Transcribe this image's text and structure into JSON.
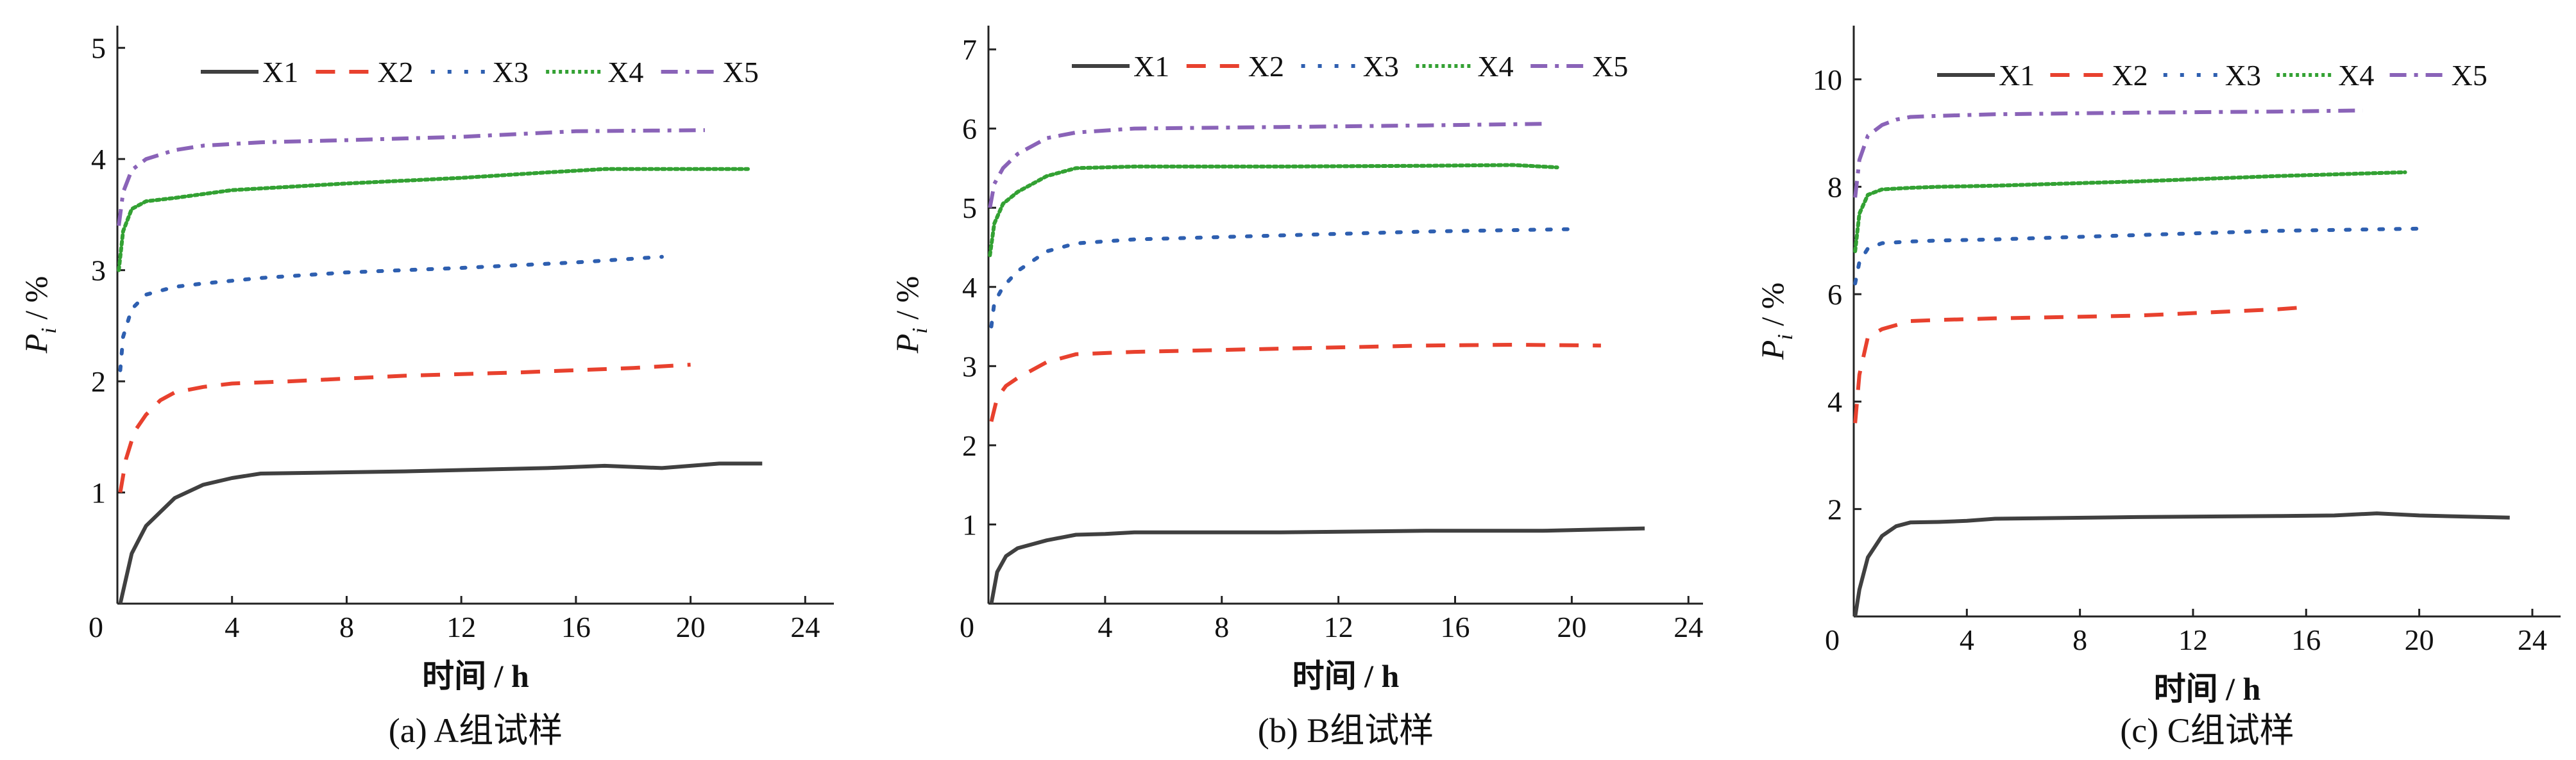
{
  "colors": {
    "X1": "#404040",
    "X2": "#e8412e",
    "X3": "#2e5fb0",
    "X4": "#33a133",
    "X5": "#8a63b8",
    "axis": "#222222"
  },
  "chart_data": [
    {
      "type": "line",
      "caption": "(a) A组试样",
      "xlabel": "时间 / h",
      "ylabel_main": "P",
      "ylabel_sub": "i",
      "ylabel_unit": " / %",
      "xlim": [
        0,
        25
      ],
      "ylim": [
        0,
        5.2
      ],
      "xticks": [
        0,
        4,
        8,
        12,
        16,
        20,
        24
      ],
      "yticks": [
        1,
        2,
        3,
        4,
        5
      ],
      "legend_position": "top",
      "series": [
        {
          "name": "X1",
          "style": "solid",
          "x": [
            0.1,
            0.5,
            0.8,
            1,
            2,
            3,
            4,
            5,
            10,
            15,
            17,
            19,
            21,
            22.5
          ],
          "y": [
            0,
            0.45,
            0.6,
            0.7,
            0.95,
            1.07,
            1.13,
            1.17,
            1.19,
            1.22,
            1.24,
            1.22,
            1.26,
            1.26
          ]
        },
        {
          "name": "X2",
          "style": "dashed",
          "x": [
            0.1,
            0.3,
            0.6,
            1,
            1.5,
            2,
            3,
            4,
            6,
            10,
            14,
            18,
            20
          ],
          "y": [
            1.0,
            1.3,
            1.55,
            1.7,
            1.83,
            1.9,
            1.95,
            1.98,
            2.0,
            2.05,
            2.08,
            2.12,
            2.15
          ]
        },
        {
          "name": "X3",
          "style": "dotted",
          "x": [
            0.1,
            0.2,
            0.5,
            1,
            2,
            3,
            5,
            8,
            12,
            16,
            19
          ],
          "y": [
            2.1,
            2.4,
            2.65,
            2.78,
            2.85,
            2.88,
            2.93,
            2.98,
            3.02,
            3.07,
            3.12
          ]
        },
        {
          "name": "X4",
          "style": "dense-dotted",
          "x": [
            0.05,
            0.2,
            0.5,
            1,
            2,
            4,
            8,
            12,
            15,
            17,
            20,
            22
          ],
          "y": [
            3.0,
            3.35,
            3.55,
            3.62,
            3.65,
            3.72,
            3.78,
            3.83,
            3.88,
            3.91,
            3.91,
            3.91
          ]
        },
        {
          "name": "X5",
          "style": "dash-dot",
          "x": [
            0.05,
            0.2,
            0.5,
            1,
            2,
            3,
            5,
            8,
            12,
            16,
            20.5
          ],
          "y": [
            3.4,
            3.7,
            3.9,
            4.0,
            4.08,
            4.12,
            4.15,
            4.17,
            4.2,
            4.25,
            4.26
          ]
        }
      ]
    },
    {
      "type": "line",
      "caption": "(b) B组试样",
      "xlabel": "时间 / h",
      "ylabel_main": "P",
      "ylabel_sub": "i",
      "ylabel_unit": " / %",
      "xlim": [
        0,
        24.5
      ],
      "ylim": [
        0,
        7.3
      ],
      "xticks": [
        0,
        4,
        8,
        12,
        16,
        20,
        24
      ],
      "yticks": [
        1,
        2,
        3,
        4,
        5,
        6,
        7
      ],
      "legend_position": "top",
      "series": [
        {
          "name": "X1",
          "style": "solid",
          "x": [
            0.1,
            0.3,
            0.6,
            1,
            2,
            3,
            4,
            5,
            10,
            15,
            19,
            22.5
          ],
          "y": [
            0,
            0.4,
            0.6,
            0.7,
            0.8,
            0.87,
            0.88,
            0.9,
            0.9,
            0.92,
            0.92,
            0.95
          ]
        },
        {
          "name": "X2",
          "style": "dashed",
          "x": [
            0.1,
            0.3,
            0.6,
            1,
            2,
            3,
            5,
            10,
            15,
            18,
            21
          ],
          "y": [
            2.3,
            2.6,
            2.75,
            2.85,
            3.05,
            3.15,
            3.18,
            3.22,
            3.26,
            3.27,
            3.26
          ]
        },
        {
          "name": "X3",
          "style": "dotted",
          "x": [
            0.1,
            0.2,
            0.5,
            1,
            2,
            3,
            5,
            10,
            15,
            20
          ],
          "y": [
            3.5,
            3.8,
            4.0,
            4.2,
            4.45,
            4.55,
            4.6,
            4.65,
            4.7,
            4.73
          ]
        },
        {
          "name": "X4",
          "style": "dense-dotted",
          "x": [
            0.05,
            0.2,
            0.5,
            1,
            2,
            3,
            5,
            10,
            15,
            18,
            19.5
          ],
          "y": [
            4.4,
            4.8,
            5.05,
            5.2,
            5.4,
            5.5,
            5.52,
            5.52,
            5.53,
            5.54,
            5.51
          ]
        },
        {
          "name": "X5",
          "style": "dash-dot",
          "x": [
            0.05,
            0.2,
            0.5,
            1,
            2,
            3,
            5,
            10,
            15,
            19
          ],
          "y": [
            5.0,
            5.3,
            5.5,
            5.68,
            5.88,
            5.95,
            6.0,
            6.02,
            6.04,
            6.06
          ]
        }
      ]
    },
    {
      "type": "line",
      "caption": "(c) C组试样",
      "xlabel": "时间 / h",
      "ylabel_main": "P",
      "ylabel_sub": "i",
      "ylabel_unit": " / %",
      "xlim": [
        0,
        25
      ],
      "ylim": [
        0,
        11
      ],
      "xticks": [
        0,
        4,
        8,
        12,
        16,
        20,
        24
      ],
      "yticks": [
        2,
        4,
        6,
        8,
        10
      ],
      "legend_position": "top",
      "series": [
        {
          "name": "X1",
          "style": "solid",
          "x": [
            0.05,
            0.2,
            0.5,
            1,
            1.5,
            2,
            3,
            4,
            5,
            10,
            15,
            17,
            18.5,
            20,
            23.2
          ],
          "y": [
            0,
            0.5,
            1.1,
            1.5,
            1.68,
            1.75,
            1.76,
            1.78,
            1.82,
            1.85,
            1.87,
            1.88,
            1.92,
            1.88,
            1.84
          ]
        },
        {
          "name": "X2",
          "style": "dashed",
          "x": [
            0.05,
            0.2,
            0.5,
            1,
            2,
            3,
            5,
            10,
            15,
            15.8
          ],
          "y": [
            3.6,
            4.5,
            5.2,
            5.35,
            5.5,
            5.52,
            5.55,
            5.6,
            5.72,
            5.75
          ]
        },
        {
          "name": "X3",
          "style": "dotted",
          "x": [
            0.05,
            0.2,
            0.5,
            1,
            2,
            3,
            5,
            10,
            15,
            20
          ],
          "y": [
            6.2,
            6.6,
            6.85,
            6.95,
            6.98,
            7.0,
            7.02,
            7.1,
            7.18,
            7.22
          ]
        },
        {
          "name": "X4",
          "style": "dense-dotted",
          "x": [
            0.05,
            0.2,
            0.5,
            1,
            2,
            3,
            5,
            10,
            15,
            19.5
          ],
          "y": [
            6.8,
            7.5,
            7.85,
            7.95,
            7.98,
            8.0,
            8.02,
            8.1,
            8.2,
            8.27
          ]
        },
        {
          "name": "X5",
          "style": "dash-dot",
          "x": [
            0.05,
            0.2,
            0.5,
            1,
            1.5,
            2,
            3,
            5,
            10,
            15,
            18
          ],
          "y": [
            7.8,
            8.5,
            8.95,
            9.15,
            9.25,
            9.3,
            9.32,
            9.35,
            9.38,
            9.4,
            9.42
          ]
        }
      ]
    }
  ]
}
